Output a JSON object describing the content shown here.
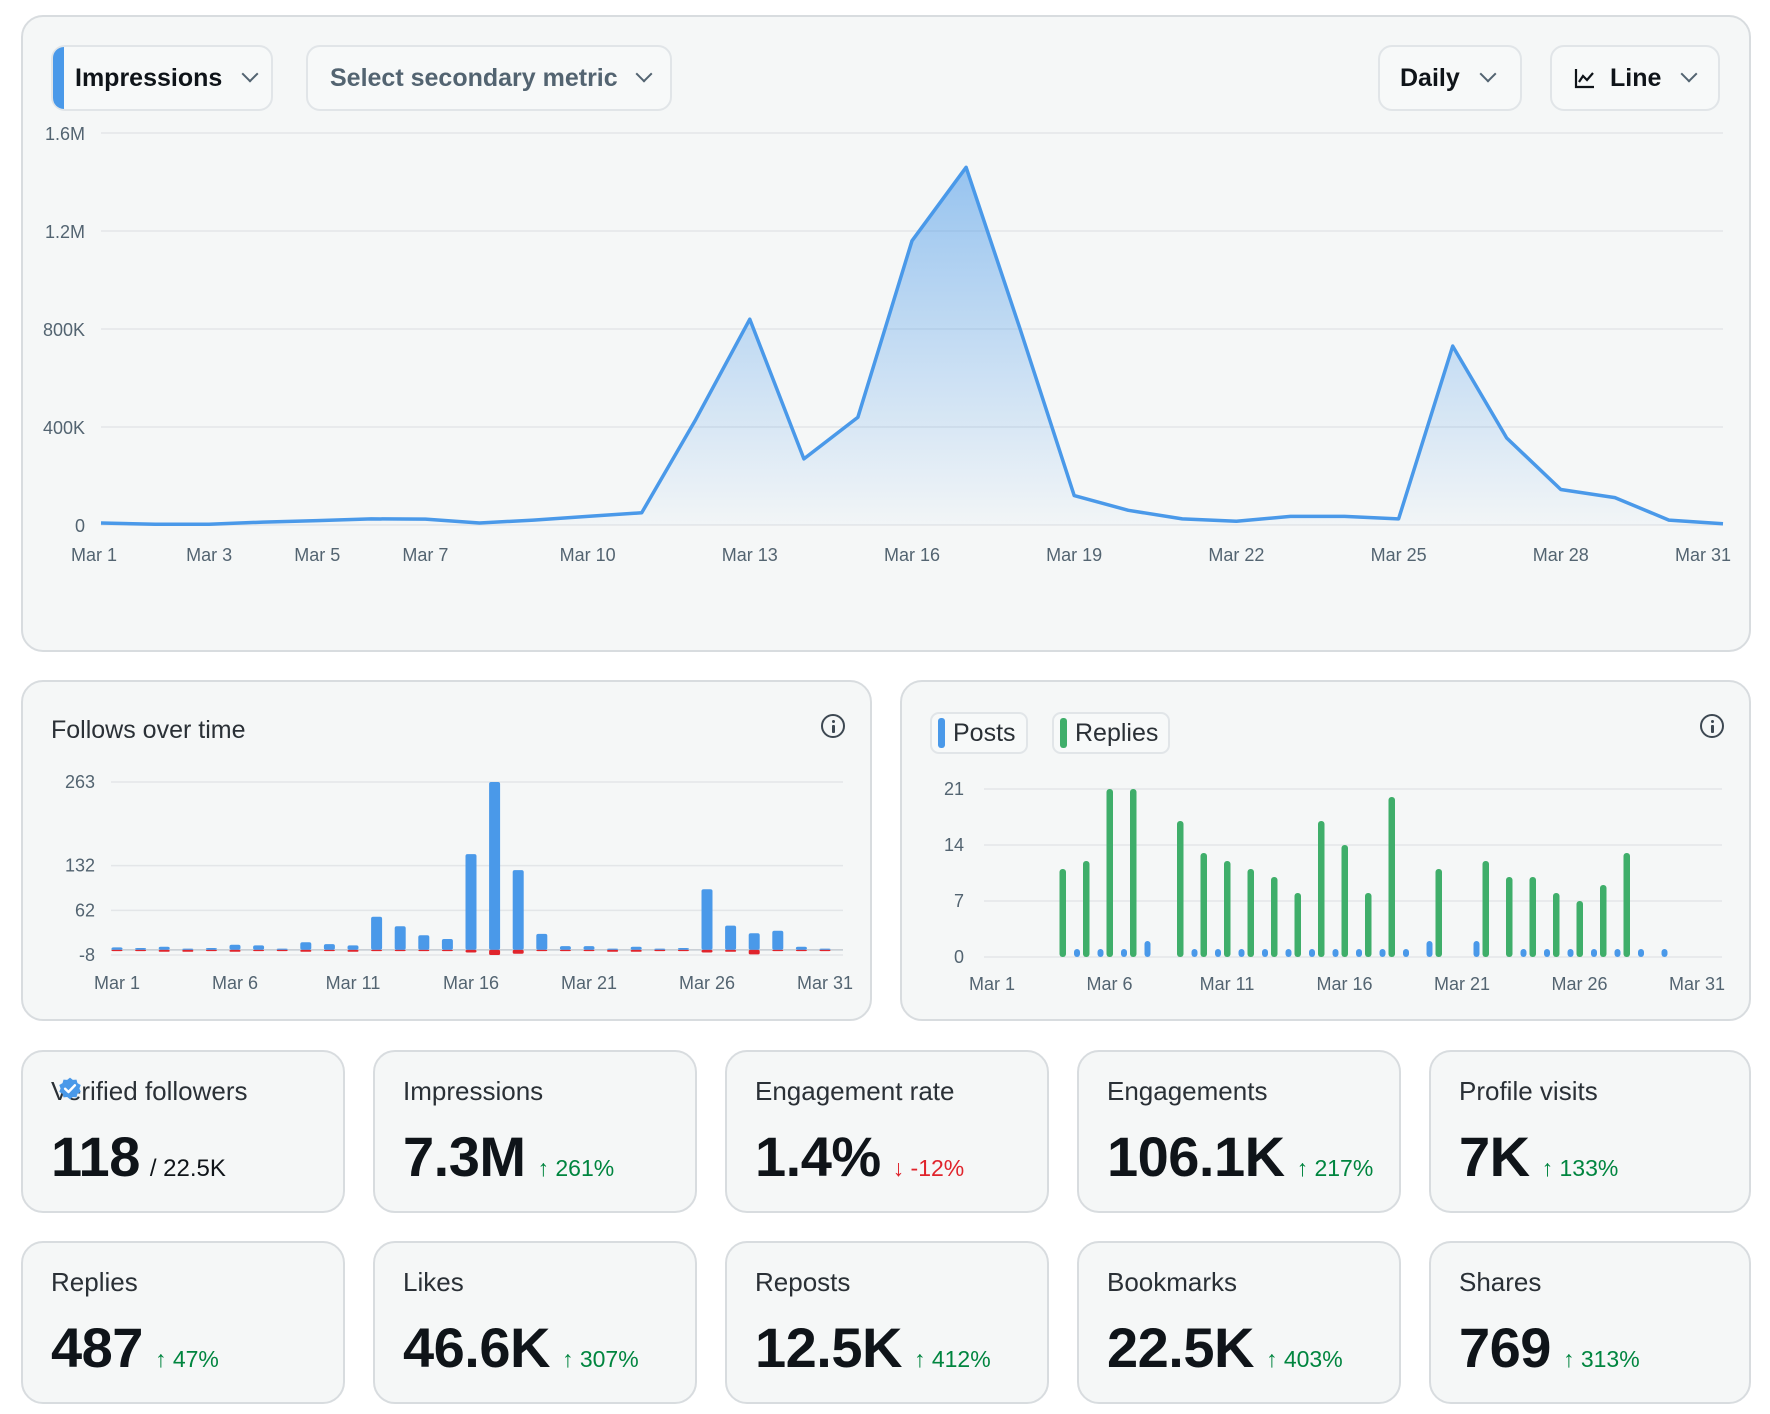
{
  "toolbar": {
    "primary_metric": "Impressions",
    "secondary_metric_placeholder": "Select secondary metric",
    "interval": "Daily",
    "chart_type": "Line"
  },
  "colors": {
    "accent": "#4a99e9",
    "replies": "#3fae6a",
    "negative": "#e0242c",
    "positive": "#00853f"
  },
  "follows": {
    "title": "Follows over time"
  },
  "posts_replies": {
    "legend_posts": "Posts",
    "legend_replies": "Replies"
  },
  "stats": [
    {
      "label": "Verified followers",
      "value": "118",
      "sub": "/ 22.5K",
      "verified": true
    },
    {
      "label": "Impressions",
      "value": "7.3M",
      "change": "261%",
      "dir": "up"
    },
    {
      "label": "Engagement rate",
      "value": "1.4%",
      "change": "-12%",
      "dir": "down"
    },
    {
      "label": "Engagements",
      "value": "106.1K",
      "change": "217%",
      "dir": "up"
    },
    {
      "label": "Profile visits",
      "value": "7K",
      "change": "133%",
      "dir": "up"
    },
    {
      "label": "Replies",
      "value": "487",
      "change": "47%",
      "dir": "up"
    },
    {
      "label": "Likes",
      "value": "46.6K",
      "change": "307%",
      "dir": "up"
    },
    {
      "label": "Reposts",
      "value": "12.5K",
      "change": "412%",
      "dir": "up"
    },
    {
      "label": "Bookmarks",
      "value": "22.5K",
      "change": "403%",
      "dir": "up"
    },
    {
      "label": "Shares",
      "value": "769",
      "change": "313%",
      "dir": "up"
    }
  ],
  "chart_data": [
    {
      "type": "area",
      "title": "Impressions",
      "series": [
        {
          "name": "Impressions",
          "values": [
            8000,
            3000,
            3000,
            12000,
            18000,
            25000,
            24000,
            8000,
            20000,
            35000,
            50000,
            430000,
            840000,
            270000,
            440000,
            1160000,
            1460000,
            800000,
            120000,
            60000,
            25000,
            15000,
            35000,
            35000,
            25000,
            730000,
            355000,
            145000,
            112000,
            20000,
            5000
          ]
        }
      ],
      "tick_labels": [
        "Mar 1",
        "Mar 3",
        "Mar 5",
        "Mar 7",
        "Mar 10",
        "Mar 13",
        "Mar 16",
        "Mar 19",
        "Mar 22",
        "Mar 25",
        "Mar 28",
        "Mar 31"
      ],
      "tick_days": [
        1,
        3,
        5,
        7,
        10,
        13,
        16,
        19,
        22,
        25,
        28,
        31
      ],
      "y_ticks": [
        0,
        400000,
        800000,
        1200000,
        1600000
      ],
      "y_tick_labels": [
        "0",
        "400K",
        "800K",
        "1.2M",
        "1.6M"
      ],
      "ylim": [
        0,
        1600000
      ]
    },
    {
      "type": "bar",
      "title": "Follows over time",
      "series": [
        {
          "name": "Follows",
          "values": [
            4,
            3,
            5,
            2,
            3,
            8,
            7,
            2,
            12,
            9,
            7,
            52,
            37,
            23,
            17,
            150,
            263,
            125,
            25,
            6,
            6,
            2,
            5,
            2,
            3,
            95,
            38,
            26,
            30,
            5,
            2
          ]
        },
        {
          "name": "Unfollows",
          "values": [
            -2,
            -2,
            -3,
            -3,
            -2,
            -3,
            -2,
            -2,
            -3,
            -2,
            -3,
            -2,
            -2,
            -2,
            -2,
            -4,
            -8,
            -6,
            -2,
            -2,
            -2,
            -3,
            -3,
            -2,
            -2,
            -4,
            -3,
            -7,
            -2,
            -2,
            -2
          ]
        }
      ],
      "tick_labels": [
        "Mar 1",
        "Mar 6",
        "Mar 11",
        "Mar 16",
        "Mar 21",
        "Mar 26",
        "Mar 31"
      ],
      "tick_days": [
        1,
        6,
        11,
        16,
        21,
        26,
        31
      ],
      "y_ticks": [
        -8,
        62,
        132,
        263
      ],
      "y_tick_labels": [
        "-8",
        "62",
        "132",
        "263"
      ],
      "ylim": [
        -8,
        263
      ]
    },
    {
      "type": "bar",
      "title": "Posts and Replies",
      "series": [
        {
          "name": "Posts",
          "values": [
            0,
            0,
            0,
            0,
            1,
            1,
            1,
            2,
            0,
            1,
            1,
            1,
            1,
            1,
            1,
            1,
            1,
            1,
            1,
            2,
            0,
            2,
            0,
            1,
            1,
            1,
            1,
            1,
            1,
            1,
            0
          ]
        },
        {
          "name": "Replies",
          "values": [
            0,
            0,
            0,
            11,
            12,
            21,
            21,
            0,
            17,
            13,
            12,
            11,
            10,
            8,
            17,
            14,
            8,
            20,
            0,
            11,
            0,
            12,
            10,
            10,
            8,
            7,
            9,
            13,
            0,
            0,
            0
          ]
        }
      ],
      "tick_labels": [
        "Mar 1",
        "Mar 6",
        "Mar 11",
        "Mar 16",
        "Mar 21",
        "Mar 26",
        "Mar 31"
      ],
      "tick_days": [
        1,
        6,
        11,
        16,
        21,
        26,
        31
      ],
      "y_ticks": [
        0,
        7,
        14,
        21
      ],
      "y_tick_labels": [
        "0",
        "7",
        "14",
        "21"
      ],
      "ylim": [
        0,
        21
      ]
    }
  ]
}
